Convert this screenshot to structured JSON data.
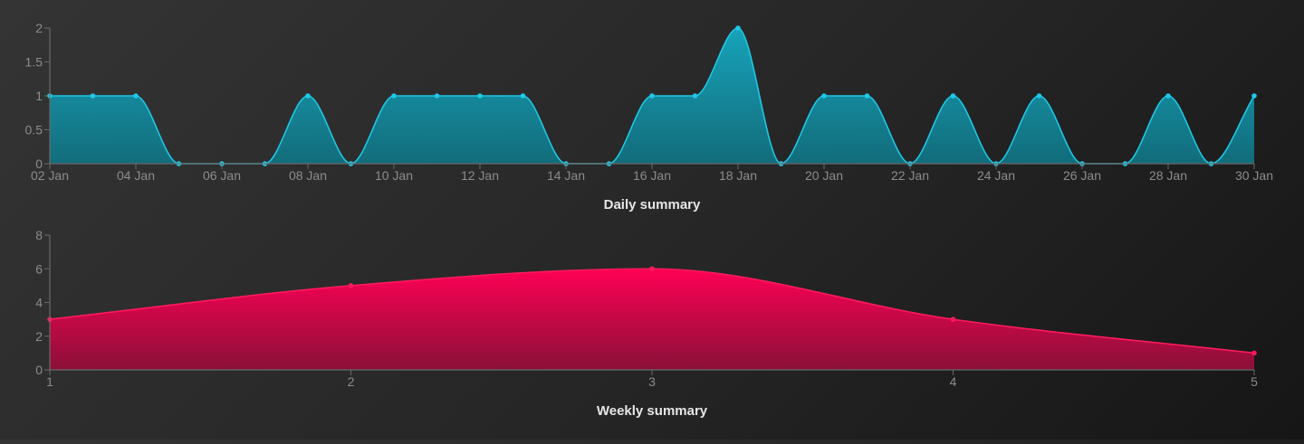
{
  "colors": {
    "daily_line": "#1ec8e6",
    "daily_fill_top": "#16a9c2",
    "daily_fill_bottom": "#11707f",
    "weekly_line": "#ff1a5c",
    "weekly_fill_top": "#ff0055",
    "weekly_fill_bottom": "#8a1038",
    "axis": "#6a6a6a",
    "tick_text": "#8c8c8c",
    "title_text": "#e6e6e6"
  },
  "chart_data": [
    {
      "type": "area",
      "title": "Daily summary",
      "interpolation": "smooth",
      "x_tick_labels": [
        "02 Jan",
        "04 Jan",
        "06 Jan",
        "08 Jan",
        "10 Jan",
        "12 Jan",
        "14 Jan",
        "16 Jan",
        "18 Jan",
        "20 Jan",
        "22 Jan",
        "24 Jan",
        "26 Jan",
        "28 Jan",
        "30 Jan"
      ],
      "x": [
        2,
        3,
        4,
        5,
        6,
        7,
        8,
        9,
        10,
        11,
        12,
        13,
        14,
        15,
        16,
        17,
        18,
        19,
        20,
        21,
        22,
        23,
        24,
        25,
        26,
        27,
        28,
        29,
        30
      ],
      "values": [
        1,
        1,
        1,
        0,
        0,
        0,
        1,
        0,
        1,
        1,
        1,
        1,
        0,
        0,
        1,
        1,
        2,
        0,
        1,
        1,
        0,
        1,
        0,
        1,
        0,
        0,
        1,
        0,
        1
      ],
      "x_unit": "day of January",
      "ylim": [
        0,
        2
      ],
      "y_ticks": [
        "0",
        "0.5",
        "1",
        "1.5",
        "2"
      ],
      "y_tick_values": [
        0,
        0.5,
        1,
        1.5,
        2
      ],
      "grid": false,
      "legend": false
    },
    {
      "type": "area",
      "title": "Weekly summary",
      "interpolation": "smooth",
      "x": [
        1,
        2,
        3,
        4,
        5
      ],
      "values": [
        3,
        5,
        6,
        3,
        1
      ],
      "x_tick_labels": [
        "1",
        "2",
        "3",
        "4",
        "5"
      ],
      "ylim": [
        0,
        8
      ],
      "y_ticks": [
        "0",
        "2",
        "4",
        "6",
        "8"
      ],
      "y_tick_values": [
        0,
        2,
        4,
        6,
        8
      ],
      "grid": false,
      "legend": false
    }
  ]
}
